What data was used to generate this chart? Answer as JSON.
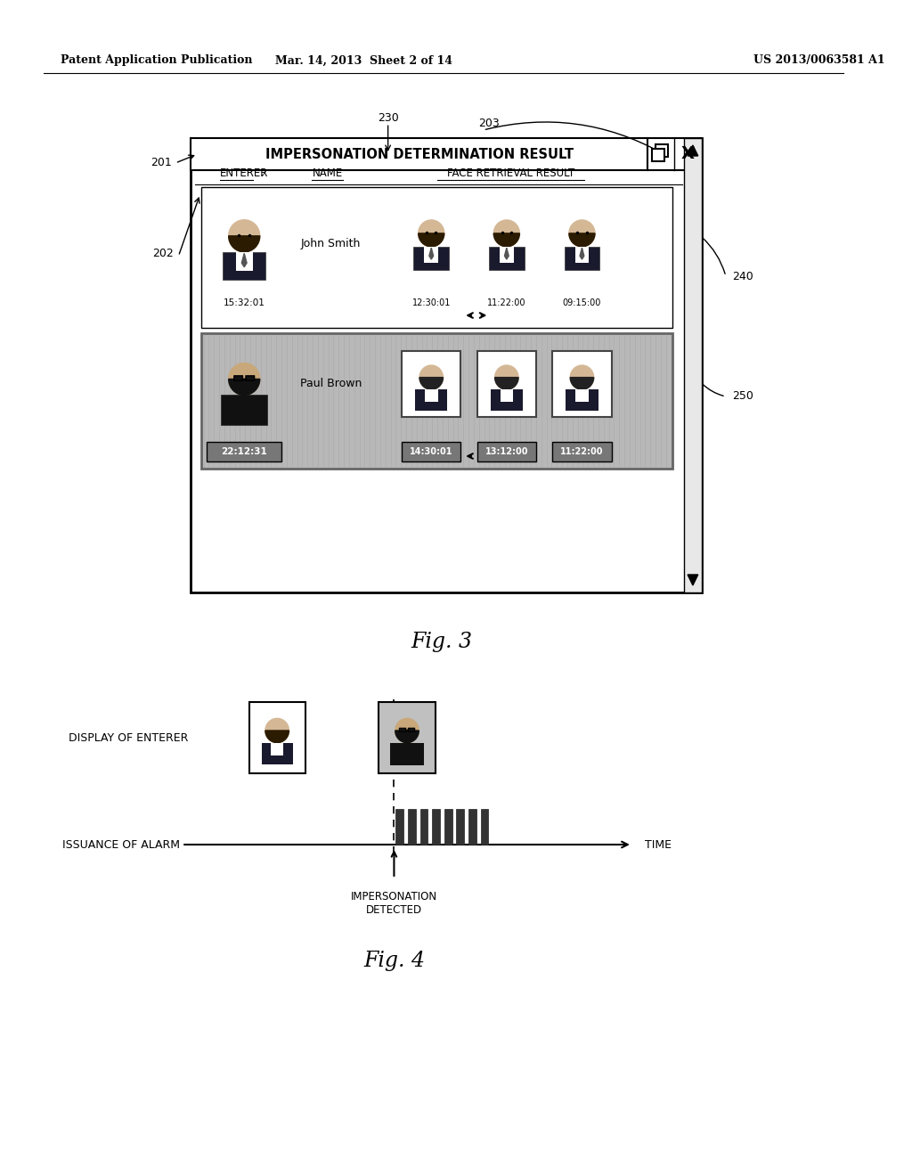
{
  "bg_color": "#ffffff",
  "header_left": "Patent Application Publication",
  "header_mid": "Mar. 14, 2013  Sheet 2 of 14",
  "header_right": "US 2013/0063581 A1",
  "fig3_label": "Fig. 3",
  "fig4_label": "Fig. 4",
  "callout_201": "201",
  "callout_202": "202",
  "callout_203": "203",
  "callout_230": "230",
  "callout_240": "240",
  "callout_250": "250",
  "title_text": "IMPERSONATION DETERMINATION RESULT",
  "col_enterer": "ENTERER",
  "col_name": "NAME",
  "col_face": "FACE RETRIEVAL RESULT",
  "row1_name": "John Smith",
  "row1_time1": "15:32:01",
  "row1_time2": "12:30:01",
  "row1_time3": "11:22:00",
  "row1_time4": "09:15:00",
  "row2_name": "Paul Brown",
  "row2_time1": "22:12:31",
  "row2_time2": "14:30:01",
  "row2_time3": "13:12:00",
  "row2_time4": "11:22:00",
  "fig4_display": "DISPLAY OF ENTERER",
  "fig4_alarm": "ISSUANCE OF ALARM",
  "fig4_time": "TIME",
  "fig4_detected": "IMPERSONATION\nDETECTED"
}
